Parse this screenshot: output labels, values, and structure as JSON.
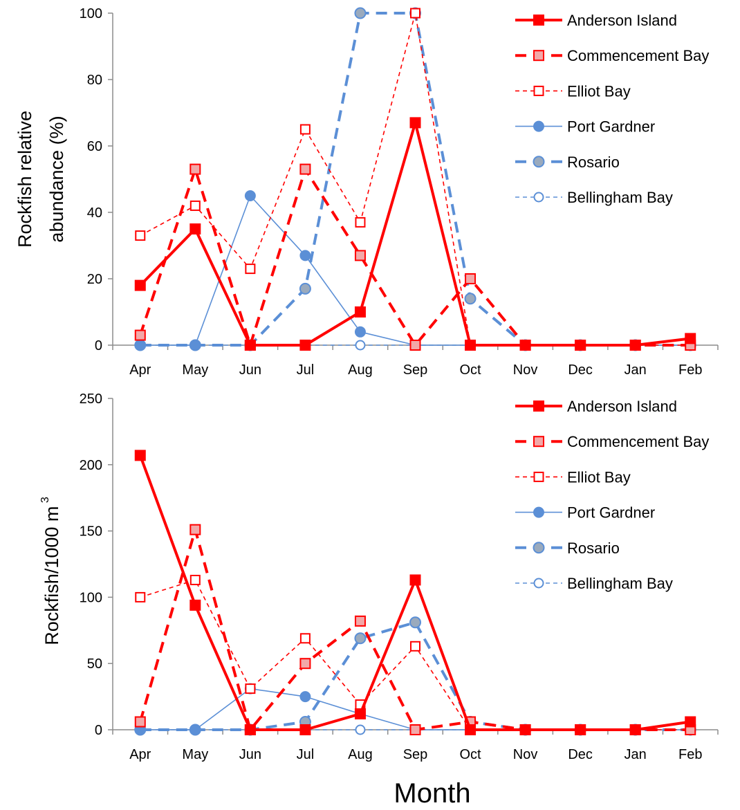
{
  "figure": {
    "xlabel": "Month"
  },
  "series_styles": [
    {
      "name": "Anderson Island",
      "color": "#ff0000",
      "marker": "square",
      "fill": "#ff0000",
      "markerStroke": "#ff0000",
      "width": 4,
      "dash": "",
      "markerSize": 14
    },
    {
      "name": "Commencement Bay",
      "color": "#ff0000",
      "marker": "square",
      "fill": "#f2a8a8",
      "markerStroke": "#ff0000",
      "width": 4,
      "dash": "16,10",
      "markerSize": 14
    },
    {
      "name": "Elliot Bay",
      "color": "#ff0000",
      "marker": "square",
      "fill": "#ffffff",
      "markerStroke": "#ff0000",
      "width": 1.6,
      "dash": "6,5",
      "markerSize": 13
    },
    {
      "name": "Port Gardner",
      "color": "#5b8fd6",
      "marker": "circle",
      "fill": "#5b8fd6",
      "markerStroke": "#5b8fd6",
      "width": 1.6,
      "dash": "",
      "markerSize": 14
    },
    {
      "name": "Rosario",
      "color": "#5b8fd6",
      "marker": "circle",
      "fill": "#9aaabd",
      "markerStroke": "#5b8fd6",
      "width": 4,
      "dash": "16,10",
      "markerSize": 15
    },
    {
      "name": "Bellingham Bay",
      "color": "#5b8fd6",
      "marker": "circle",
      "fill": "#ffffff",
      "markerStroke": "#5b8fd6",
      "width": 1.6,
      "dash": "6,5",
      "markerSize": 13
    }
  ],
  "chart_data": [
    {
      "type": "line",
      "title": "",
      "ylabel": "Rockfish relative abundance (%)",
      "ylabel_lines": [
        "Rockfish relative",
        "abundance (%)"
      ],
      "xlabel": "",
      "categories": [
        "Apr",
        "May",
        "Jun",
        "Jul",
        "Aug",
        "Sep",
        "Oct",
        "Nov",
        "Dec",
        "Jan",
        "Feb"
      ],
      "ylim": [
        0,
        100
      ],
      "yticks": [
        0,
        20,
        40,
        60,
        80,
        100
      ],
      "grid": false,
      "legend": "top-right",
      "series": [
        {
          "name": "Anderson Island",
          "values": [
            18,
            35,
            0,
            0,
            10,
            67,
            0,
            0,
            0,
            0,
            2
          ]
        },
        {
          "name": "Commencement Bay",
          "values": [
            3,
            53,
            0,
            53,
            27,
            0,
            20,
            0,
            0,
            0,
            0
          ]
        },
        {
          "name": "Elliot Bay",
          "values": [
            33,
            42,
            23,
            65,
            37,
            100,
            0,
            0,
            0,
            0,
            0
          ]
        },
        {
          "name": "Port Gardner",
          "values": [
            0,
            0,
            45,
            27,
            4,
            0,
            0,
            0,
            0,
            0,
            0
          ]
        },
        {
          "name": "Rosario",
          "values": [
            0,
            0,
            0,
            17,
            100,
            100,
            14,
            0,
            0,
            0,
            0
          ]
        },
        {
          "name": "Bellingham Bay",
          "values": [
            0,
            0,
            0,
            0,
            0,
            0,
            0,
            0,
            0,
            0,
            0
          ]
        }
      ]
    },
    {
      "type": "line",
      "title": "",
      "ylabel": "Rockfish/1000 m",
      "ylabel_superscript": "3",
      "xlabel": "",
      "categories": [
        "Apr",
        "May",
        "Jun",
        "Jul",
        "Aug",
        "Sep",
        "Oct",
        "Nov",
        "Dec",
        "Jan",
        "Feb"
      ],
      "ylim": [
        0,
        250
      ],
      "yticks": [
        0,
        50,
        100,
        150,
        200,
        250
      ],
      "grid": false,
      "legend": "top-right",
      "series": [
        {
          "name": "Anderson Island",
          "values": [
            207,
            94,
            0,
            0,
            12,
            113,
            0,
            0,
            0,
            0,
            6
          ]
        },
        {
          "name": "Commencement Bay",
          "values": [
            6,
            151,
            0,
            50,
            82,
            0,
            6,
            0,
            0,
            0,
            0
          ]
        },
        {
          "name": "Elliot Bay",
          "values": [
            100,
            113,
            31,
            69,
            19,
            63,
            0,
            0,
            0,
            0,
            0
          ]
        },
        {
          "name": "Port Gardner",
          "values": [
            0,
            0,
            31,
            25,
            12,
            0,
            0,
            0,
            0,
            0,
            0
          ]
        },
        {
          "name": "Rosario",
          "values": [
            0,
            0,
            0,
            6,
            69,
            81,
            6,
            0,
            0,
            0,
            0
          ]
        },
        {
          "name": "Bellingham Bay",
          "values": [
            0,
            0,
            0,
            0,
            0,
            0,
            0,
            0,
            0,
            0,
            6
          ]
        }
      ]
    }
  ]
}
